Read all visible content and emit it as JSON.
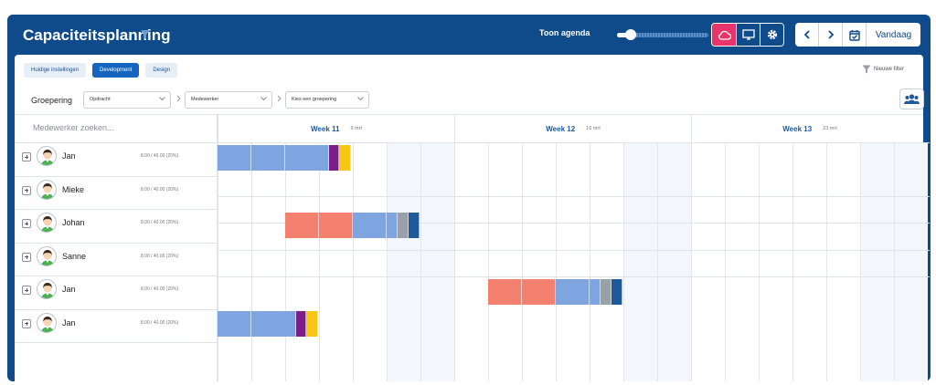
{
  "header": {
    "title": "Capaciteitsplanning",
    "agenda_label": "Toon agenda",
    "agenda_slider_value": 0.15,
    "view_buttons": [
      {
        "icon": "cloud-icon",
        "active": true
      },
      {
        "icon": "monitor-icon",
        "active": false
      },
      {
        "icon": "gear-icon",
        "active": false
      }
    ],
    "today_label": "Vandaag"
  },
  "colors": {
    "brand": "#0f4a8a",
    "accent": "#e8336b",
    "bar_blue": "#7ea5e0",
    "bar_salmon": "#f4806f",
    "bar_purple": "#7c1d8a",
    "bar_yellow": "#f7c716",
    "bar_gray": "#9aa0a8",
    "bar_navy": "#1d5a9c"
  },
  "tabs": [
    {
      "label": "Huidige instellingen",
      "active": false
    },
    {
      "label": "Development",
      "active": true
    },
    {
      "label": "Design",
      "active": false
    }
  ],
  "new_filter_label": "Nieuwe filter",
  "grouping": {
    "label": "Groepering",
    "selects": [
      "Opdracht",
      "Medewerker",
      "Kies een groepering"
    ]
  },
  "search_placeholder": "Medewerker zoeken...",
  "weeks": [
    {
      "title": "Week 11",
      "meta": "9 mrt"
    },
    {
      "title": "Week 12",
      "meta": "16 mrt"
    },
    {
      "title": "Week 13",
      "meta": "23 mrt"
    }
  ],
  "people": [
    {
      "name": "Jan",
      "hours": "8.00 / 40.00 (20%)"
    },
    {
      "name": "Mieke",
      "hours": "8.00 / 40.00 (20%)"
    },
    {
      "name": "Johan",
      "hours": "8.00 / 40.00 (20%)"
    },
    {
      "name": "Sanne",
      "hours": "8.00 / 40.00 (20%)"
    },
    {
      "name": "Jan",
      "hours": "8.00 / 40.00 (20%)"
    },
    {
      "name": "Jan",
      "hours": "8.00 / 40.00 (20%)"
    }
  ]
}
